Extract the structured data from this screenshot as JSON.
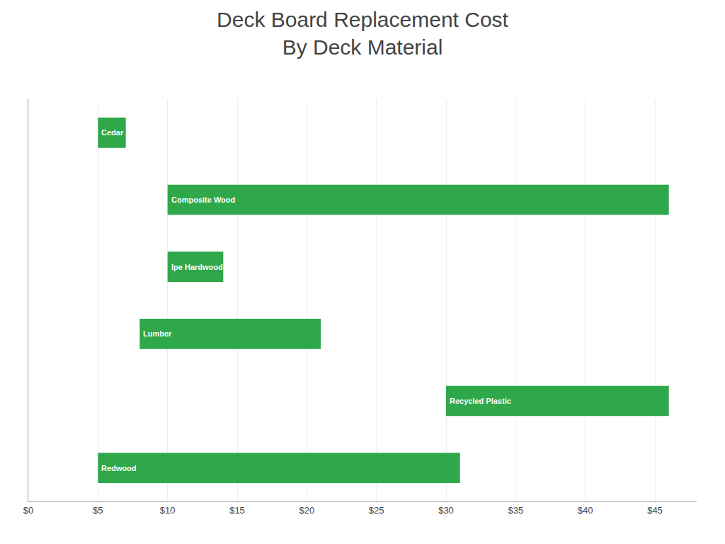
{
  "chart_data": {
    "type": "bar",
    "orientation": "horizontal",
    "title": "Deck Board Replacement Cost\nBy Deck Material",
    "categories": [
      "Cedar",
      "Composite Wood",
      "Ipe Hardwood",
      "Lumber",
      "Recycled Plastic",
      "Redwood"
    ],
    "values": [
      [
        5,
        7
      ],
      [
        10,
        46
      ],
      [
        10,
        14
      ],
      [
        8,
        21
      ],
      [
        30,
        46
      ],
      [
        5,
        31
      ]
    ],
    "color": "#2ea84a",
    "xlim": [
      0,
      48
    ],
    "xticks": [
      {
        "value": 0,
        "label": "$0"
      },
      {
        "value": 5,
        "label": "$5"
      },
      {
        "value": 10,
        "label": "$10"
      },
      {
        "value": 15,
        "label": "$15"
      },
      {
        "value": 20,
        "label": "$20"
      },
      {
        "value": 25,
        "label": "$25"
      },
      {
        "value": 30,
        "label": "$30"
      },
      {
        "value": 35,
        "label": "$35"
      },
      {
        "value": 40,
        "label": "$40"
      },
      {
        "value": 45,
        "label": "$45"
      }
    ],
    "grid": true,
    "tick_labels": "x"
  }
}
